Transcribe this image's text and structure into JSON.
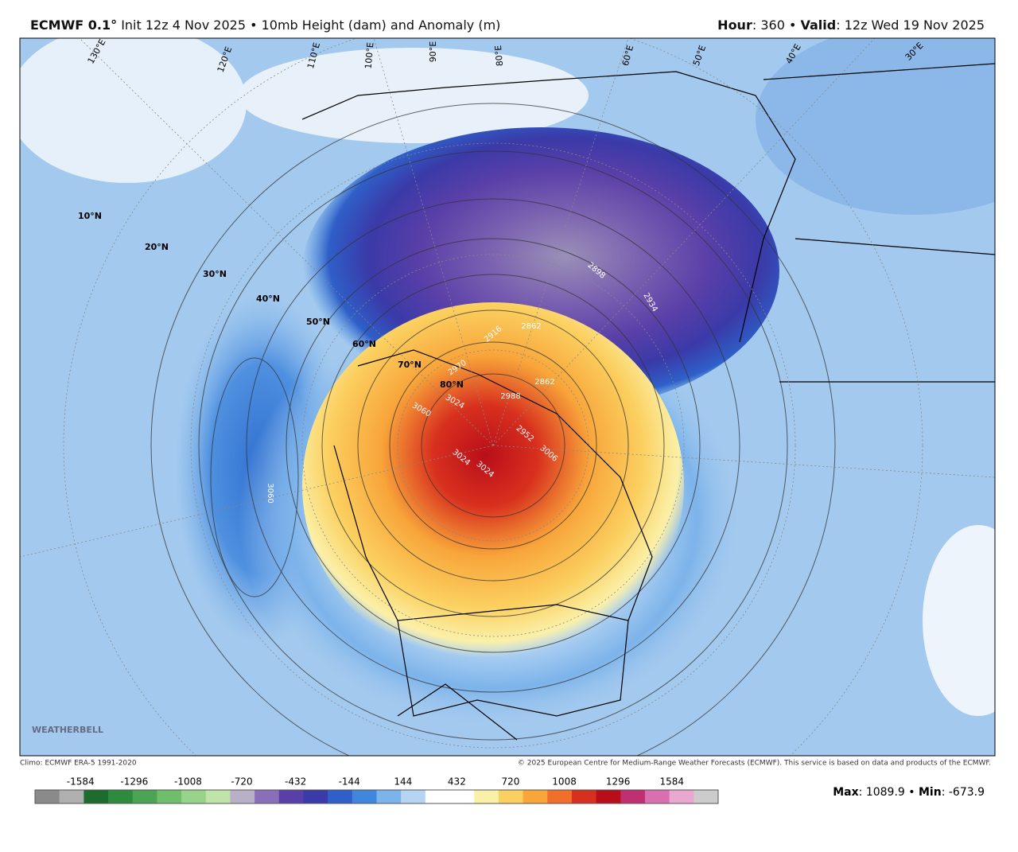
{
  "header": {
    "model": "ECMWF 0.1°",
    "description": "Init 12z 4 Nov 2025 • 10mb Height (dam) and Anomaly (m)",
    "hour_label": "Hour",
    "hour": "360",
    "valid_label": "Valid",
    "valid": "12z Wed 19 Nov 2025"
  },
  "map": {
    "latitude_labels": [
      "10°N",
      "20°N",
      "30°N",
      "40°N",
      "50°N",
      "60°N",
      "70°N",
      "80°N"
    ],
    "longitude_labels": [
      "130°E",
      "120°E",
      "110°E",
      "100°E",
      "90°E",
      "80°E",
      "60°E",
      "50°E",
      "40°E",
      "30°E"
    ],
    "contour_labels": [
      "3060",
      "2970",
      "3024",
      "3060",
      "3024",
      "2988",
      "2862",
      "2934",
      "2916",
      "2862",
      "2898",
      "3006",
      "3024",
      "2952"
    ],
    "logo": "WEATHERBELL"
  },
  "footer": {
    "climo": "Climo: ECMWF ERA-5 1991-2020",
    "copyright": "© 2025 European Centre for Medium-Range Weather Forecasts (ECMWF). This service is based on data and products of the ECMWF."
  },
  "colorbar": {
    "ticks": [
      -1584,
      -1296,
      -1008,
      -720,
      -432,
      -144,
      144,
      432,
      720,
      1008,
      1296,
      1584
    ],
    "colors": [
      "#8a8a8a",
      "#b0b0b0",
      "#1d6b2e",
      "#2e8b3e",
      "#4aa454",
      "#6fbf6a",
      "#98d38a",
      "#bfe3a8",
      "#b8b0c8",
      "#8a6fb8",
      "#5a3fa8",
      "#3a3aa8",
      "#2f5fc8",
      "#3f86dc",
      "#7cb3ea",
      "#b5d5f3",
      "#ffffff",
      "#ffffff",
      "#fbf0a8",
      "#fbd060",
      "#f8a53a",
      "#f0702a",
      "#d8301e",
      "#b80e1a",
      "#c03070",
      "#d870b0",
      "#e8a8d0",
      "#cccccc"
    ],
    "max_label": "Max",
    "max": "1089.9",
    "min_label": "Min",
    "min": "-673.9"
  }
}
